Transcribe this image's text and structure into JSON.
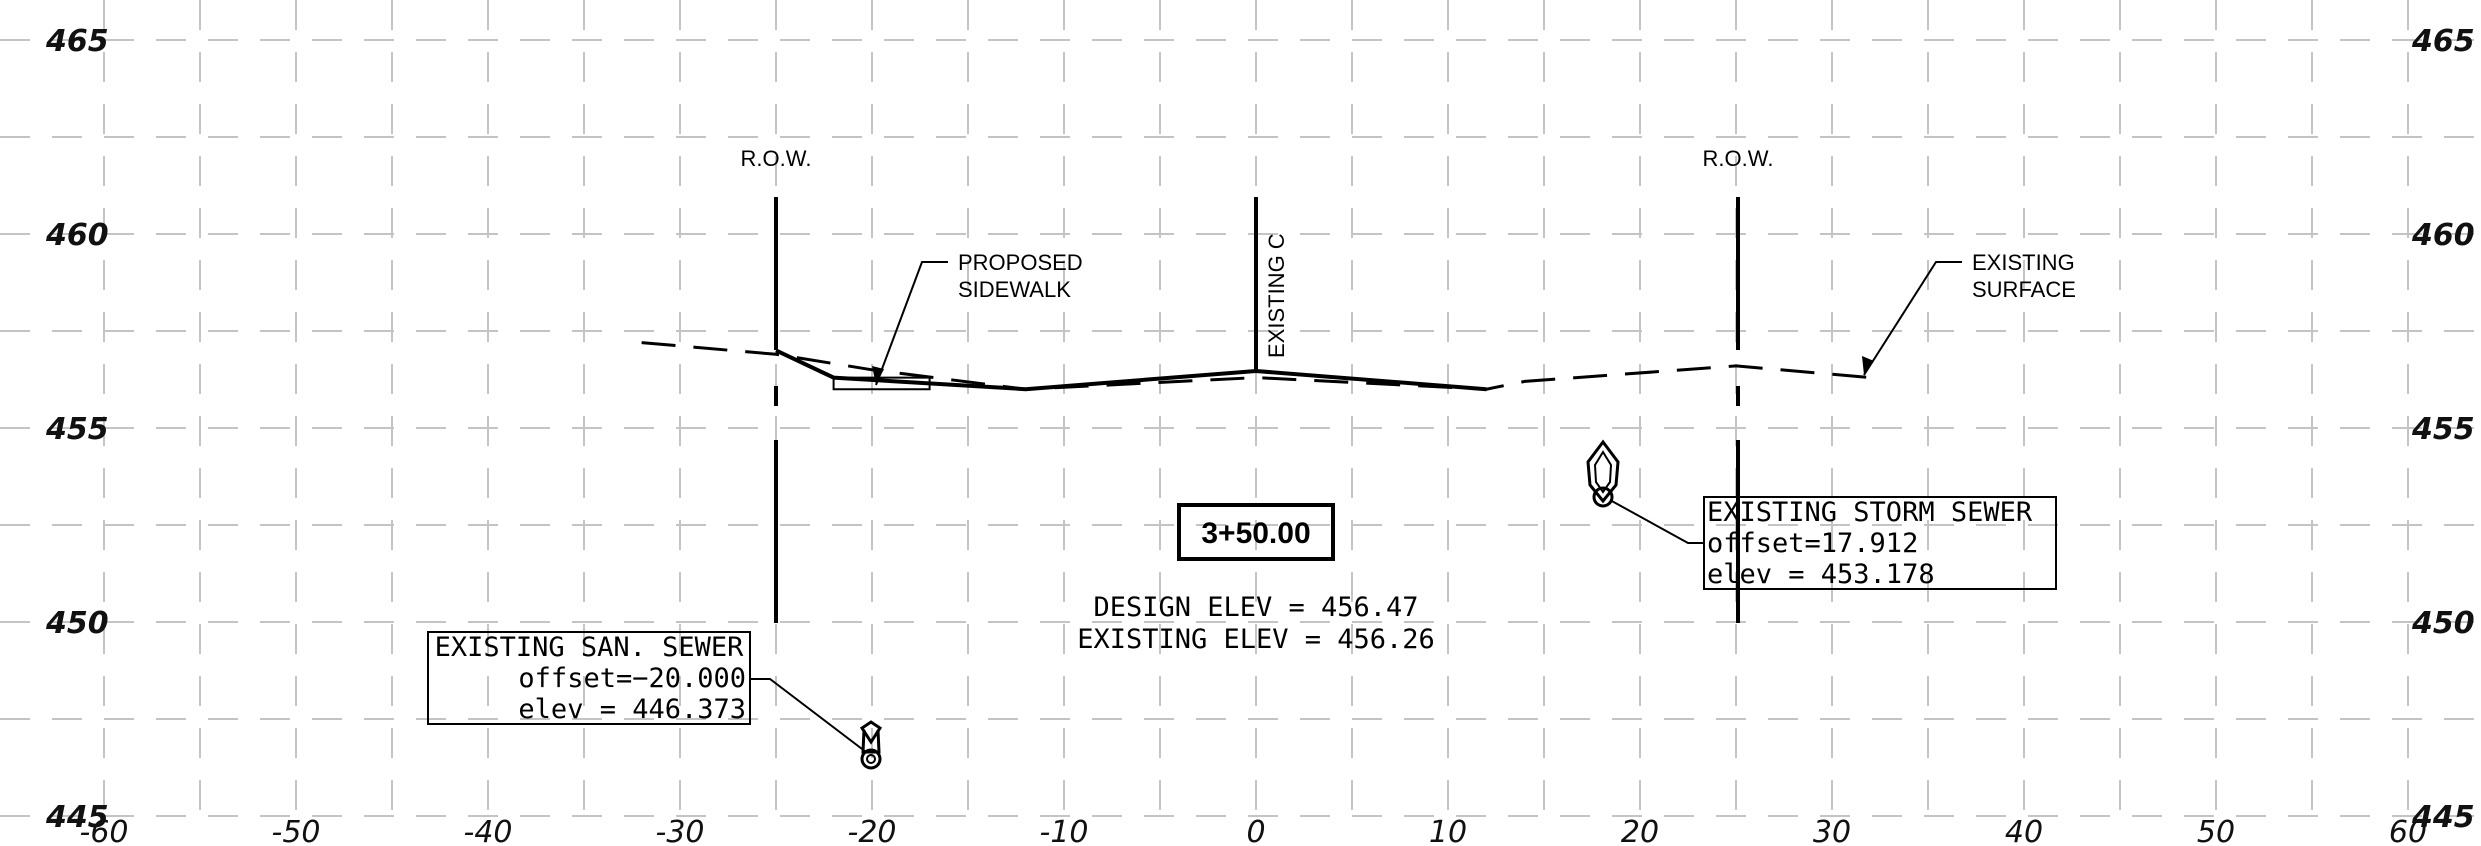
{
  "chart_data": {
    "type": "cross-section",
    "x_ticks": [
      "-60",
      "-50",
      "-40",
      "-30",
      "-20",
      "-10",
      "0",
      "10",
      "20",
      "30",
      "40",
      "50",
      "60"
    ],
    "y_ticks_left": [
      "465",
      "460",
      "455",
      "450",
      "445"
    ],
    "y_ticks_right": [
      "465",
      "460",
      "455",
      "450",
      "445"
    ],
    "xlim": [
      -60,
      60
    ],
    "ylim": [
      445,
      465
    ],
    "grid": true,
    "existing_surface": [
      [
        -32,
        457.2
      ],
      [
        -25,
        456.9
      ],
      [
        -20,
        456.5
      ],
      [
        -12,
        456.0
      ],
      [
        0,
        456.3
      ],
      [
        12,
        456.0
      ],
      [
        14,
        456.2
      ],
      [
        25,
        456.6
      ],
      [
        32,
        456.3
      ]
    ],
    "design_profile": [
      [
        -25,
        457.0
      ],
      [
        -22,
        456.3
      ],
      [
        -12,
        456.0
      ],
      [
        0,
        456.47
      ],
      [
        12,
        456.0
      ]
    ],
    "sidewalk": {
      "x1": -22,
      "x2": -17,
      "y_top": 456.3,
      "y_bottom": 456.0
    },
    "right_of_way_x": [
      -25,
      25
    ],
    "centerline_x": 0
  },
  "labels": {
    "row_left": "R.O.W.",
    "row_right": "R.O.W.",
    "centerline": "EXISTING C",
    "sidewalk_line1": "PROPOSED",
    "sidewalk_line2": "SIDEWALK",
    "surface_line1": "EXISTING",
    "surface_line2": "SURFACE",
    "station": "3+50.00",
    "design_elev": "DESIGN  ELEV  =  456.47",
    "existing_elev": "EXISTING  ELEV  =  456.26"
  },
  "san_sewer": {
    "title": "EXISTING  SAN.  SEWER",
    "offset": "offset=−20.000",
    "elev": "elev  =  446.373",
    "x": -20.0,
    "y": 446.373
  },
  "storm_sewer": {
    "title": "EXISTING  STORM  SEWER",
    "offset": "offset=17.912",
    "elev": "elev  =  453.178",
    "x": 17.912,
    "y": 453.178
  }
}
